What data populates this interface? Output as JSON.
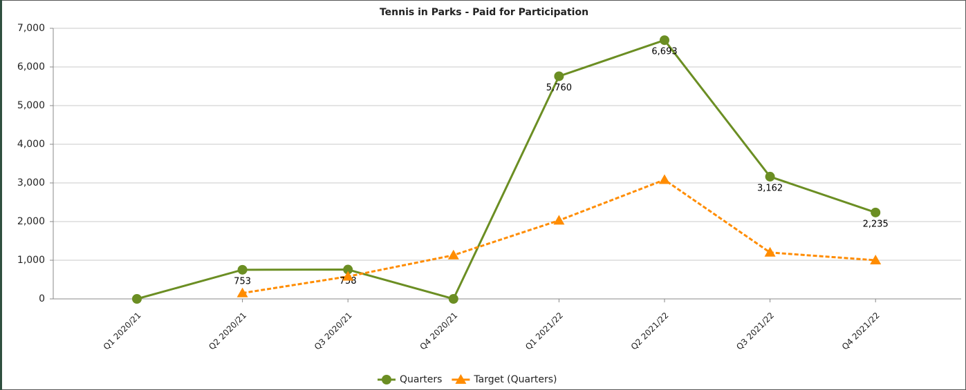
{
  "chart_data": {
    "type": "line",
    "title": "Tennis in Parks - Paid for Participation",
    "categories": [
      "Q1 2020/21",
      "Q2 2020/21",
      "Q3 2020/21",
      "Q4 2020/21",
      "Q1 2021/22",
      "Q2 2021/22",
      "Q3 2021/22",
      "Q4 2021/22"
    ],
    "series": [
      {
        "name": "Quarters",
        "color": "#6b8e23",
        "marker": "circle",
        "dash": false,
        "values": [
          0,
          753,
          758,
          0,
          5760,
          6693,
          3162,
          2235
        ],
        "value_labels": [
          null,
          "753",
          "758",
          null,
          "5,760",
          "6,693",
          "3,162",
          "2,235"
        ]
      },
      {
        "name": "Target (Quarters)",
        "color": "#ff8c00",
        "marker": "triangle",
        "dash": true,
        "values": [
          null,
          150,
          580,
          1130,
          2030,
          3080,
          1200,
          1000
        ]
      }
    ],
    "ylim": [
      0,
      7000
    ],
    "yticks": [
      0,
      {
        "value": 1000,
        "label": "1,000"
      },
      {
        "value": 2000,
        "label": "2,000"
      },
      {
        "value": 3000,
        "label": "3,000"
      },
      {
        "value": 4000,
        "label": "4,000"
      },
      {
        "value": 5000,
        "label": "5,000"
      },
      {
        "value": 6000,
        "label": "6,000"
      },
      {
        "value": 7000,
        "label": "7,000"
      }
    ],
    "grid": true,
    "legend": "bottom"
  }
}
